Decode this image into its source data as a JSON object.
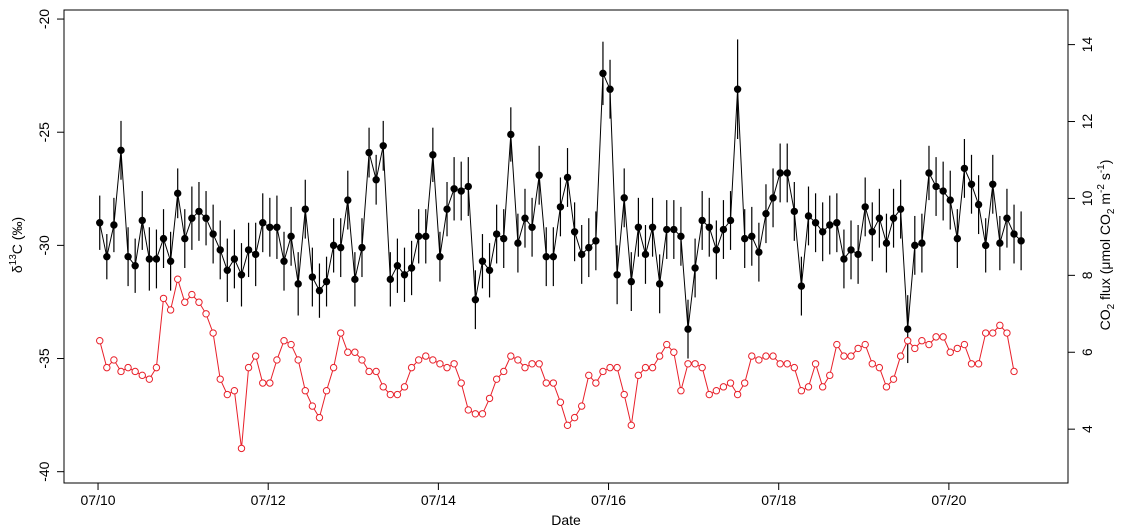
{
  "chart_data": {
    "type": "line",
    "xlabel": "Date",
    "x_tick_labels": [
      "07/10",
      "07/12",
      "07/14",
      "07/16",
      "07/18",
      "07/20"
    ],
    "x_ticks": [
      10,
      12,
      14,
      16,
      18,
      20
    ],
    "xlim": [
      9.6,
      21.4
    ],
    "left_axis": {
      "label_parts": [
        "δ",
        "13",
        "C (‰)"
      ],
      "ticks": [
        -20,
        -25,
        -30,
        -35,
        -40
      ],
      "tick_labels": [
        "-20",
        "-25",
        "-30",
        "-35",
        "-40"
      ],
      "ylim": [
        -40.5,
        -19.6
      ]
    },
    "right_axis": {
      "label_parts": [
        "CO",
        "2",
        " flux (μmol CO",
        "2",
        " m",
        "-2",
        " s",
        "-1",
        ")"
      ],
      "ticks": [
        4,
        6,
        8,
        10,
        12,
        14
      ],
      "tick_labels": [
        "4",
        "6",
        "8",
        "10",
        "12",
        "14"
      ],
      "ylim": [
        2.6,
        14.9
      ]
    },
    "series": [
      {
        "axis": "left",
        "color": "#000000",
        "marker": "filled-circle",
        "error_bars": true,
        "start": 10.02,
        "step": 0.0833,
        "values": [
          -29.0,
          -30.5,
          -29.1,
          -25.8,
          -30.5,
          -30.9,
          -28.9,
          -30.6,
          -30.6,
          -29.7,
          -30.7,
          -27.7,
          -29.7,
          -28.8,
          -28.5,
          -28.8,
          -29.5,
          -30.2,
          -31.1,
          -30.6,
          -31.3,
          -30.2,
          -30.4,
          -29.0,
          -29.2,
          -29.2,
          -30.7,
          -29.6,
          -31.7,
          -28.4,
          -31.4,
          -32.0,
          -31.6,
          -30.0,
          -30.1,
          -28.0,
          -31.5,
          -30.1,
          -25.9,
          -27.1,
          -25.6,
          -31.5,
          -30.9,
          -31.3,
          -31.0,
          -29.6,
          -29.6,
          -26.0,
          -30.5,
          -28.4,
          -27.5,
          -27.6,
          -27.4,
          -32.4,
          -30.7,
          -31.1,
          -29.5,
          -29.7,
          -25.1,
          -29.9,
          -28.8,
          -29.2,
          -26.9,
          -30.5,
          -30.5,
          -28.3,
          -27.0,
          -29.4,
          -30.4,
          -30.1,
          -29.8,
          -22.4,
          -23.1,
          -31.3,
          -27.9,
          -31.6,
          -29.2,
          -30.4,
          -29.2,
          -31.7,
          -29.3,
          -29.3,
          -29.6,
          -33.7,
          -31.0,
          -28.9,
          -29.2,
          -30.2,
          -29.3,
          -28.9,
          -23.1,
          -29.7,
          -29.6,
          -30.3,
          -28.6,
          -27.9,
          -26.8,
          -26.8,
          -28.5,
          -31.8,
          -28.7,
          -29.0,
          -29.4,
          -29.1,
          -29.0,
          -30.6,
          -30.2,
          -30.4,
          -28.3,
          -29.4,
          -28.8,
          -29.9,
          -28.8,
          -28.4,
          -33.7,
          -30.0,
          -29.9,
          -26.8,
          -27.4,
          -27.6,
          -28.0,
          -29.7,
          -26.6,
          -27.3,
          -28.2,
          -30.0,
          -27.3,
          -29.9,
          -28.8,
          -29.5,
          -29.8
        ],
        "errors": [
          1.2,
          1.0,
          1.2,
          1.3,
          1.3,
          1.2,
          1.3,
          1.4,
          1.3,
          1.3,
          1.3,
          1.1,
          1.3,
          1.4,
          1.3,
          1.2,
          1.3,
          1.3,
          1.4,
          1.3,
          1.4,
          1.2,
          1.4,
          1.3,
          1.3,
          1.4,
          1.3,
          1.3,
          1.4,
          1.3,
          1.3,
          1.2,
          1.1,
          1.2,
          1.3,
          1.3,
          1.2,
          1.3,
          1.1,
          1.1,
          1.1,
          1.2,
          1.2,
          1.2,
          1.2,
          1.2,
          1.2,
          1.2,
          1.1,
          1.2,
          1.4,
          1.3,
          1.3,
          1.3,
          1.2,
          1.2,
          1.3,
          1.3,
          1.2,
          1.3,
          1.3,
          1.3,
          1.3,
          1.3,
          1.3,
          1.3,
          1.3,
          1.3,
          1.3,
          1.3,
          1.3,
          1.4,
          1.3,
          1.3,
          1.3,
          1.3,
          1.3,
          1.3,
          1.3,
          1.3,
          1.3,
          1.3,
          1.3,
          1.3,
          1.3,
          1.3,
          1.3,
          1.3,
          1.3,
          1.3,
          2.2,
          1.3,
          1.3,
          1.3,
          1.3,
          1.3,
          1.3,
          1.3,
          1.3,
          1.3,
          1.3,
          1.3,
          1.3,
          1.3,
          1.3,
          1.3,
          1.3,
          1.3,
          1.3,
          1.3,
          1.3,
          1.3,
          1.3,
          1.3,
          1.5,
          1.3,
          1.3,
          1.2,
          1.3,
          1.3,
          1.3,
          1.3,
          1.3,
          1.3,
          1.3,
          1.2,
          1.3,
          1.2,
          1.3,
          1.3,
          1.3
        ]
      },
      {
        "axis": "right",
        "color": "#e8202a",
        "marker": "open-circle",
        "error_bars": false,
        "start": 10.02,
        "step": 0.0833,
        "values": [
          6.3,
          5.6,
          5.8,
          5.5,
          5.6,
          5.5,
          5.4,
          5.3,
          5.6,
          7.4,
          7.1,
          7.9,
          7.3,
          7.5,
          7.3,
          7.0,
          6.5,
          5.3,
          4.9,
          5.0,
          3.5,
          5.6,
          5.9,
          5.2,
          5.2,
          5.8,
          6.3,
          6.2,
          5.8,
          5.0,
          4.6,
          4.3,
          5.0,
          5.6,
          6.5,
          6.0,
          6.0,
          5.8,
          5.5,
          5.5,
          5.1,
          4.9,
          4.9,
          5.1,
          5.6,
          5.8,
          5.9,
          5.8,
          5.7,
          5.6,
          5.7,
          5.2,
          4.5,
          4.4,
          4.4,
          4.8,
          5.3,
          5.5,
          5.9,
          5.8,
          5.6,
          5.7,
          5.7,
          5.2,
          5.2,
          4.7,
          4.1,
          4.3,
          4.6,
          5.4,
          5.2,
          5.5,
          5.6,
          5.6,
          4.9,
          4.1,
          5.4,
          5.6,
          5.6,
          5.9,
          6.2,
          6.0,
          5.0,
          5.7,
          5.7,
          5.6,
          4.9,
          5.0,
          5.1,
          5.2,
          4.9,
          5.2,
          5.9,
          5.8,
          5.9,
          5.9,
          5.7,
          5.7,
          5.6,
          5.0,
          5.1,
          5.7,
          5.1,
          5.4,
          6.2,
          5.9,
          5.9,
          6.1,
          6.2,
          5.7,
          5.6,
          5.1,
          5.3,
          5.9,
          6.3,
          6.1,
          6.3,
          6.2,
          6.4,
          6.4,
          6.0,
          6.1,
          6.2,
          5.7,
          5.7,
          6.5,
          6.5,
          6.7,
          6.5,
          5.5
        ]
      }
    ]
  }
}
